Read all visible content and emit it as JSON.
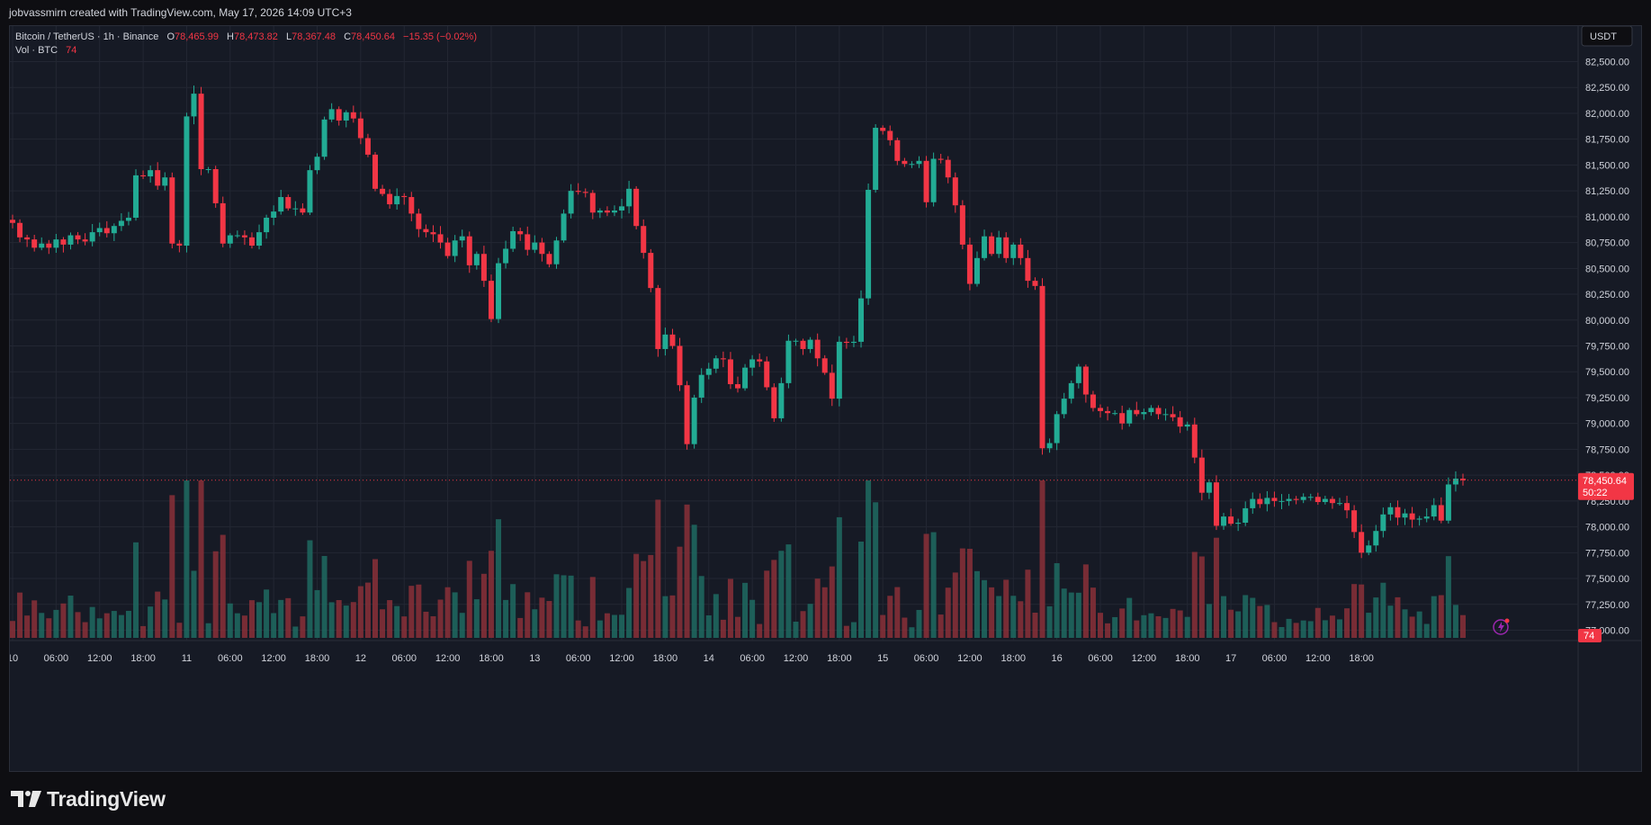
{
  "header": {
    "attribution": "jobvassmirn created with TradingView.com, May 17, 2026 14:09 UTC+3"
  },
  "legend": {
    "symbol": "Bitcoin / TetherUS · 1h · Binance",
    "open_label": "O",
    "open": "78,465.99",
    "high_label": "H",
    "high": "78,473.82",
    "low_label": "L",
    "low": "78,367.48",
    "close_label": "C",
    "close": "78,450.64",
    "change": "−15.35 (−0.02%)",
    "volume_label": "Vol · BTC",
    "volume_value": "74"
  },
  "price_axis": {
    "currency": "USDT",
    "current_price": "78,450.64",
    "countdown": "50:22",
    "volume_badge": "74"
  },
  "footer": {
    "brand": "TradingView"
  },
  "colors": {
    "background": "#161a25",
    "grid": "#232733",
    "up": "#22ab94",
    "down": "#f23645",
    "vol_up": "#1e6b61",
    "vol_down": "#8a3038",
    "text": "#d1d4dc"
  },
  "chart_data": {
    "type": "candlestick",
    "y_range": [
      76900,
      82600
    ],
    "y_ticks": [
      77000,
      77250,
      77500,
      77750,
      78000,
      78250,
      78500,
      78750,
      79000,
      79250,
      79500,
      79750,
      80000,
      80250,
      80500,
      80750,
      81000,
      81250,
      81500,
      81750,
      82000,
      82250,
      82500
    ],
    "y_tick_labels": [
      "77,000.00",
      "77,250.00",
      "77,500.00",
      "77,750.00",
      "78,000.00",
      "78,250.00",
      "78,500.00",
      "78,750.00",
      "79,000.00",
      "79,250.00",
      "79,500.00",
      "79,750.00",
      "80,000.00",
      "80,250.00",
      "80,500.00",
      "80,750.00",
      "81,000.00",
      "81,250.00",
      "81,500.00",
      "81,750.00",
      "82,000.00",
      "82,250.00",
      "82,500.00"
    ],
    "x_tick_labels": [
      "10",
      "06:00",
      "12:00",
      "18:00",
      "11",
      "06:00",
      "12:00",
      "18:00",
      "12",
      "06:00",
      "12:00",
      "18:00",
      "13",
      "06:00",
      "12:00",
      "18:00",
      "14",
      "06:00",
      "12:00",
      "18:00",
      "15",
      "06:00",
      "12:00",
      "18:00",
      "16",
      "06:00",
      "12:00",
      "18:00",
      "17",
      "06:00",
      "12:00",
      "18:00"
    ],
    "x_tick_bar_index": [
      0,
      6,
      12,
      18,
      24,
      30,
      36,
      42,
      48,
      54,
      60,
      66,
      72,
      78,
      84,
      90,
      96,
      102,
      108,
      114,
      120,
      126,
      132,
      138,
      144,
      150,
      156,
      162,
      168,
      174,
      180,
      186
    ],
    "current_price": 78450.64,
    "volume_max": 140,
    "candles_close": [
      80940,
      80800,
      80780,
      80700,
      80740,
      80700,
      80780,
      80730,
      80820,
      80780,
      80760,
      80850,
      80890,
      80840,
      80910,
      80960,
      80990,
      81400,
      81390,
      81450,
      81300,
      81380,
      80740,
      80720,
      81970,
      82190,
      81460,
      81460,
      81130,
      80740,
      80820,
      80820,
      80800,
      80720,
      80850,
      80990,
      81050,
      81190,
      81080,
      81080,
      81040,
      81450,
      81580,
      81940,
      82040,
      81930,
      82010,
      81950,
      81760,
      81600,
      81270,
      81220,
      81120,
      81200,
      81190,
      81030,
      80880,
      80850,
      80830,
      80750,
      80620,
      80770,
      80810,
      80530,
      80640,
      80380,
      80010,
      80550,
      80690,
      80860,
      80830,
      80680,
      80750,
      80640,
      80540,
      80770,
      81030,
      81250,
      81240,
      81230,
      81040,
      81060,
      81040,
      81060,
      81100,
      81270,
      80910,
      80650,
      80310,
      79720,
      79860,
      79750,
      79370,
      78800,
      79250,
      79470,
      79530,
      79630,
      79620,
      79380,
      79340,
      79540,
      79620,
      79600,
      79350,
      79050,
      79390,
      79800,
      79800,
      79720,
      79810,
      79630,
      79490,
      79240,
      79790,
      79780,
      79790,
      80210,
      81260,
      81860,
      81830,
      81740,
      81540,
      81510,
      81510,
      81540,
      81140,
      81560,
      81550,
      81380,
      81110,
      80730,
      80350,
      80600,
      80810,
      80640,
      80800,
      80600,
      80730,
      80600,
      80380,
      80330,
      78760,
      78810,
      79090,
      79240,
      79390,
      79550,
      79280,
      79150,
      79120,
      79100,
      79100,
      79000,
      79130,
      79090,
      79110,
      79150,
      79090,
      79090,
      79060,
      78970,
      78990,
      78670,
      78330,
      78430,
      78010,
      78100,
      78030,
      78040,
      78180,
      78270,
      78220,
      78280,
      78250,
      78250,
      78270,
      78260,
      78290,
      78290,
      78240,
      78270,
      78230,
      78230,
      78160,
      77950,
      77750,
      77820,
      77960,
      78120,
      78190,
      78090,
      78130,
      78070,
      78080,
      78100,
      78210,
      78060,
      78410,
      78465.99,
      78450.64
    ]
  }
}
